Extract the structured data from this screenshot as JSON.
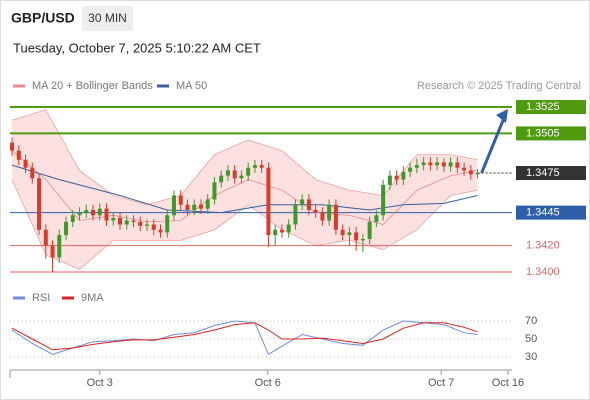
{
  "header": {
    "symbol": "GBP/USD",
    "interval": "30 MIN",
    "timestamp": "Tuesday, October 7, 2025 5:10:22 AM CET",
    "credit": "Research © 2025 Trading Central"
  },
  "chart_data": [
    {
      "type": "candlestick",
      "xlim": [
        -0.6,
        74.1
      ],
      "ylim": [
        1.339,
        1.3557
      ],
      "up_color": "#3c9a2a",
      "down_color": "#d93a2a",
      "open": [
        1.3498,
        1.3492,
        1.3485,
        1.3479,
        1.3471,
        1.3432,
        1.342,
        1.3411,
        1.3428,
        1.3438,
        1.3443,
        1.3445,
        1.3447,
        1.3443,
        1.3448,
        1.3439,
        1.3441,
        1.3436,
        1.3439,
        1.3438,
        1.3435,
        1.3436,
        1.3432,
        1.343,
        1.3443,
        1.3458,
        1.3451,
        1.3447,
        1.3451,
        1.3448,
        1.3455,
        1.3468,
        1.3473,
        1.3477,
        1.3471,
        1.3473,
        1.3479,
        1.3481,
        1.3479,
        1.3428,
        1.3432,
        1.343,
        1.3436,
        1.3451,
        1.3455,
        1.3447,
        1.3445,
        1.3439,
        1.3451,
        1.3432,
        1.3428,
        1.343,
        1.3424,
        1.3425,
        1.3438,
        1.3443,
        1.3466,
        1.3473,
        1.347,
        1.3476,
        1.3479,
        1.3481,
        1.3483,
        1.3481,
        1.3483,
        1.348,
        1.3483,
        1.3479,
        1.3477,
        1.3474
      ],
      "high": [
        1.3502,
        1.3496,
        1.3489,
        1.3483,
        1.3475,
        1.3436,
        1.3424,
        1.3432,
        1.3442,
        1.3447,
        1.3449,
        1.3451,
        1.3451,
        1.3452,
        1.3452,
        1.3445,
        1.3445,
        1.3443,
        1.3443,
        1.3442,
        1.344,
        1.344,
        1.3436,
        1.3447,
        1.3462,
        1.3462,
        1.3455,
        1.3455,
        1.3455,
        1.3459,
        1.3472,
        1.3477,
        1.3481,
        1.3481,
        1.3477,
        1.3483,
        1.3485,
        1.3485,
        1.3483,
        1.3436,
        1.3436,
        1.344,
        1.3455,
        1.3459,
        1.3459,
        1.3451,
        1.3449,
        1.3455,
        1.3455,
        1.3436,
        1.3434,
        1.3434,
        1.3429,
        1.3442,
        1.3447,
        1.347,
        1.3477,
        1.3477,
        1.348,
        1.3483,
        1.3486,
        1.3487,
        1.3487,
        1.3487,
        1.3486,
        1.3487,
        1.3487,
        1.3483,
        1.3481,
        1.3478
      ],
      "low": [
        1.3488,
        1.3481,
        1.3475,
        1.3467,
        1.3428,
        1.341,
        1.34,
        1.3407,
        1.3424,
        1.3434,
        1.3439,
        1.3441,
        1.3439,
        1.3439,
        1.3435,
        1.3435,
        1.3432,
        1.3432,
        1.3434,
        1.3431,
        1.3431,
        1.3428,
        1.3426,
        1.3426,
        1.3439,
        1.3447,
        1.3443,
        1.3443,
        1.3444,
        1.3444,
        1.3451,
        1.3464,
        1.3469,
        1.3467,
        1.3467,
        1.3469,
        1.3475,
        1.3475,
        1.3419,
        1.342,
        1.3426,
        1.3426,
        1.3432,
        1.3447,
        1.3443,
        1.3441,
        1.3435,
        1.3435,
        1.3428,
        1.3424,
        1.342,
        1.3416,
        1.3415,
        1.3421,
        1.3434,
        1.3439,
        1.3462,
        1.3466,
        1.3466,
        1.3472,
        1.3475,
        1.3477,
        1.3477,
        1.3477,
        1.3476,
        1.3476,
        1.3475,
        1.3473,
        1.347,
        1.3471
      ],
      "close": [
        1.3492,
        1.3485,
        1.3479,
        1.3471,
        1.3432,
        1.342,
        1.3411,
        1.3428,
        1.3438,
        1.3443,
        1.3445,
        1.3447,
        1.3443,
        1.3448,
        1.3439,
        1.3441,
        1.3436,
        1.3439,
        1.3438,
        1.3435,
        1.3436,
        1.3432,
        1.343,
        1.3443,
        1.3458,
        1.3451,
        1.3447,
        1.3451,
        1.3448,
        1.3455,
        1.3468,
        1.3473,
        1.3477,
        1.3471,
        1.3473,
        1.3479,
        1.3481,
        1.3479,
        1.3428,
        1.3432,
        1.343,
        1.3436,
        1.3451,
        1.3455,
        1.3447,
        1.3445,
        1.3439,
        1.3451,
        1.3432,
        1.3428,
        1.343,
        1.3424,
        1.3425,
        1.3438,
        1.3443,
        1.3466,
        1.3473,
        1.347,
        1.3476,
        1.3479,
        1.3481,
        1.3483,
        1.3481,
        1.3483,
        1.348,
        1.3483,
        1.3479,
        1.3477,
        1.3474,
        1.3475
      ],
      "series": [
        {
          "name": "MA 20 + Bollinger Bands",
          "color": "#f08a8a",
          "band_color": "#fde0e0",
          "x": [
            0,
            5,
            10,
            15,
            20,
            25,
            30,
            35,
            40,
            45,
            50,
            55,
            60,
            65,
            69
          ],
          "values": [
            1.3492,
            1.347,
            1.3439,
            1.3443,
            1.3438,
            1.3439,
            1.3458,
            1.347,
            1.3462,
            1.3445,
            1.3443,
            1.3436,
            1.3462,
            1.3473,
            1.3477
          ],
          "upper": [
            1.3515,
            1.3523,
            1.3477,
            1.3458,
            1.3451,
            1.3458,
            1.3489,
            1.35,
            1.3492,
            1.347,
            1.3462,
            1.3458,
            1.3489,
            1.3489,
            1.3485
          ],
          "lower": [
            1.347,
            1.3413,
            1.3402,
            1.3424,
            1.3424,
            1.3424,
            1.3432,
            1.3451,
            1.3432,
            1.342,
            1.3424,
            1.3417,
            1.3432,
            1.3458,
            1.3462
          ]
        },
        {
          "name": "MA 50",
          "color": "#3a5f9a",
          "x": [
            0,
            7,
            16,
            23,
            31,
            38,
            46,
            53,
            58,
            64,
            69
          ],
          "values": [
            1.3481,
            1.347,
            1.3458,
            1.3447,
            1.3445,
            1.3451,
            1.3451,
            1.3447,
            1.3451,
            1.3452,
            1.3458
          ]
        }
      ],
      "levels": [
        1.3525,
        1.3505,
        1.3475,
        1.3445,
        {
          "value": 1.342,
          "label": "1.3420"
        },
        {
          "value": 1.34,
          "label": "1.3400"
        }
      ],
      "level_colors": [
        "#4f9a0f",
        "#4f9a0f",
        "#333333",
        "#2e5ea8",
        "#e06666",
        "#e06666"
      ],
      "level_boxed": [
        true,
        true,
        true,
        true,
        false,
        false
      ],
      "level_lines": [
        "solid",
        "solid",
        "dotted",
        "solid",
        "solid",
        "solid"
      ]
    },
    {
      "type": "line",
      "xlim": [
        -0.6,
        74.1
      ],
      "ylim": [
        25,
        75
      ],
      "yticks": [
        70,
        50,
        30
      ],
      "x": [
        0,
        3,
        6,
        9,
        12,
        15,
        18,
        21,
        24,
        27,
        30,
        33,
        36,
        38,
        40,
        43,
        46,
        49,
        52,
        55,
        58,
        61,
        64,
        67,
        69
      ],
      "series": [
        {
          "name": "RSI",
          "color": "#6b8bdc",
          "values": [
            60,
            45,
            33,
            40,
            47,
            48,
            50,
            48,
            55,
            57,
            65,
            70,
            68,
            33,
            42,
            55,
            50,
            45,
            43,
            60,
            70,
            68,
            66,
            57,
            55
          ]
        },
        {
          "name": "9MA",
          "color": "#e02020",
          "values": [
            62,
            50,
            38,
            40,
            44,
            47,
            49,
            49,
            52,
            55,
            60,
            66,
            68,
            60,
            50,
            50,
            51,
            48,
            45,
            50,
            62,
            68,
            68,
            63,
            58
          ]
        }
      ],
      "xticks": [
        {
          "value": 13,
          "label": "Oct 3"
        },
        {
          "value": 37.9,
          "label": "Oct 6"
        },
        {
          "value": 63.6,
          "label": "Oct 7"
        },
        {
          "value": 73.5,
          "label": "Oct 16"
        }
      ]
    }
  ]
}
